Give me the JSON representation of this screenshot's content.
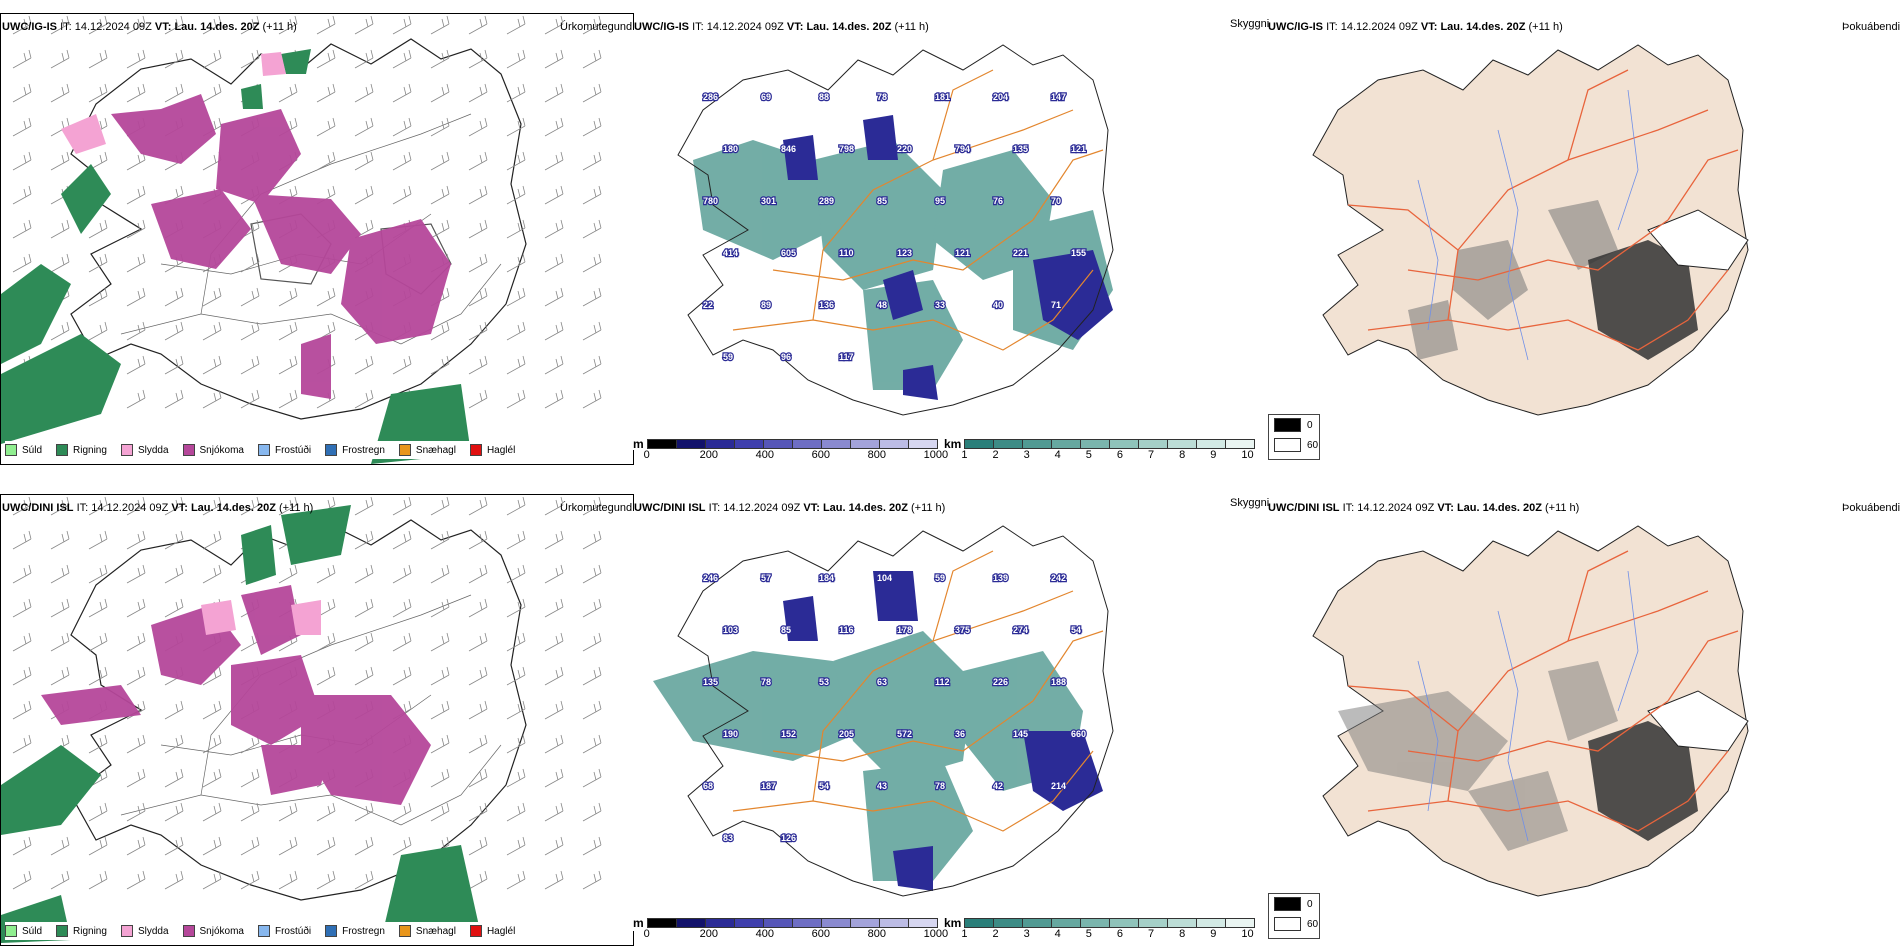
{
  "rows": [
    {
      "model": "UWC/IG-IS",
      "it_label": "IT:",
      "it_value": "14.12.2024 09Z",
      "vt_label": "VT:",
      "vt_value": "Lau. 14.des. 20Z",
      "lead": "(+11 h)",
      "panel1_label": "Úrkomutegund",
      "panel2_label": "Skyggni",
      "panel3_label": "Þokuábendi",
      "cloud_base_values": [
        "286",
        "69",
        "88",
        "78",
        "181",
        "204",
        "147",
        "180",
        "846",
        "798",
        "220",
        "794",
        "135",
        "121",
        "780",
        "301",
        "289",
        "85",
        "95",
        "76",
        "70",
        "414",
        "605",
        "110",
        "123",
        "121",
        "221",
        "155",
        "22",
        "89",
        "136",
        "48",
        "33",
        "40",
        "71",
        "59",
        "96",
        "117"
      ]
    },
    {
      "model": "UWC/DINI ISL",
      "it_label": "IT:",
      "it_value": "14.12.2024 09Z",
      "vt_label": "VT:",
      "vt_value": "Lau. 14.des. 20Z",
      "lead": "(+11 h)",
      "panel1_label": "Úrkomutegund",
      "panel2_label": "Skyggni",
      "panel3_label": "Þokuábendi",
      "cloud_base_values": [
        "246",
        "57",
        "184",
        "104",
        "59",
        "139",
        "242",
        "103",
        "85",
        "116",
        "178",
        "375",
        "274",
        "54",
        "135",
        "78",
        "53",
        "63",
        "112",
        "226",
        "188",
        "190",
        "152",
        "205",
        "572",
        "36",
        "145",
        "660",
        "68",
        "187",
        "54",
        "43",
        "78",
        "42",
        "214",
        "83",
        "126"
      ]
    }
  ],
  "precip_legend": [
    {
      "label": "Súld",
      "color": "#90ee90"
    },
    {
      "label": "Rigning",
      "color": "#2e8b57"
    },
    {
      "label": "Slydda",
      "color": "#f4a3d3"
    },
    {
      "label": "Snjókoma",
      "color": "#b5479a"
    },
    {
      "label": "Frostúði",
      "color": "#87b7ee"
    },
    {
      "label": "Frostregn",
      "color": "#2f6fb5"
    },
    {
      "label": "Snæhagl",
      "color": "#e8951b"
    },
    {
      "label": "Haglél",
      "color": "#e01010"
    }
  ],
  "cloudbase_bar": {
    "unit": "m",
    "ticks": [
      "0",
      "200",
      "400",
      "600",
      "800",
      "1000"
    ],
    "colors": [
      "#000000",
      "#12126b",
      "#2b2b96",
      "#3f3fad",
      "#5656b8",
      "#6e6ec4",
      "#8a8ad0",
      "#a3a3da",
      "#bcbce5",
      "#d6d6f0"
    ]
  },
  "visibility_bar": {
    "unit": "km",
    "ticks": [
      "1",
      "2",
      "3",
      "4",
      "5",
      "6",
      "7",
      "8",
      "9",
      "10"
    ],
    "colors": [
      "#2a7f7a",
      "#3d8c86",
      "#519a93",
      "#66a8a0",
      "#7ab5ad",
      "#8fc3ba",
      "#a5d0c8",
      "#bcddd6",
      "#d3eae5",
      "#eaf5f2"
    ]
  },
  "fog_legend": [
    {
      "label": "0",
      "color": "#000000"
    },
    {
      "label": "60",
      "color": "#ffffff"
    }
  ],
  "colors": {
    "land_fog": "#f2e2d3",
    "roads": "#e8643c",
    "rivers": "#6f8fe8",
    "road_orange": "#e3862e",
    "snow": "#b5479a",
    "rain": "#2e8b57",
    "sleet": "#f4a3d3",
    "cloud_blue": "#2b2b96",
    "vis_teal": "#5a9f97"
  }
}
